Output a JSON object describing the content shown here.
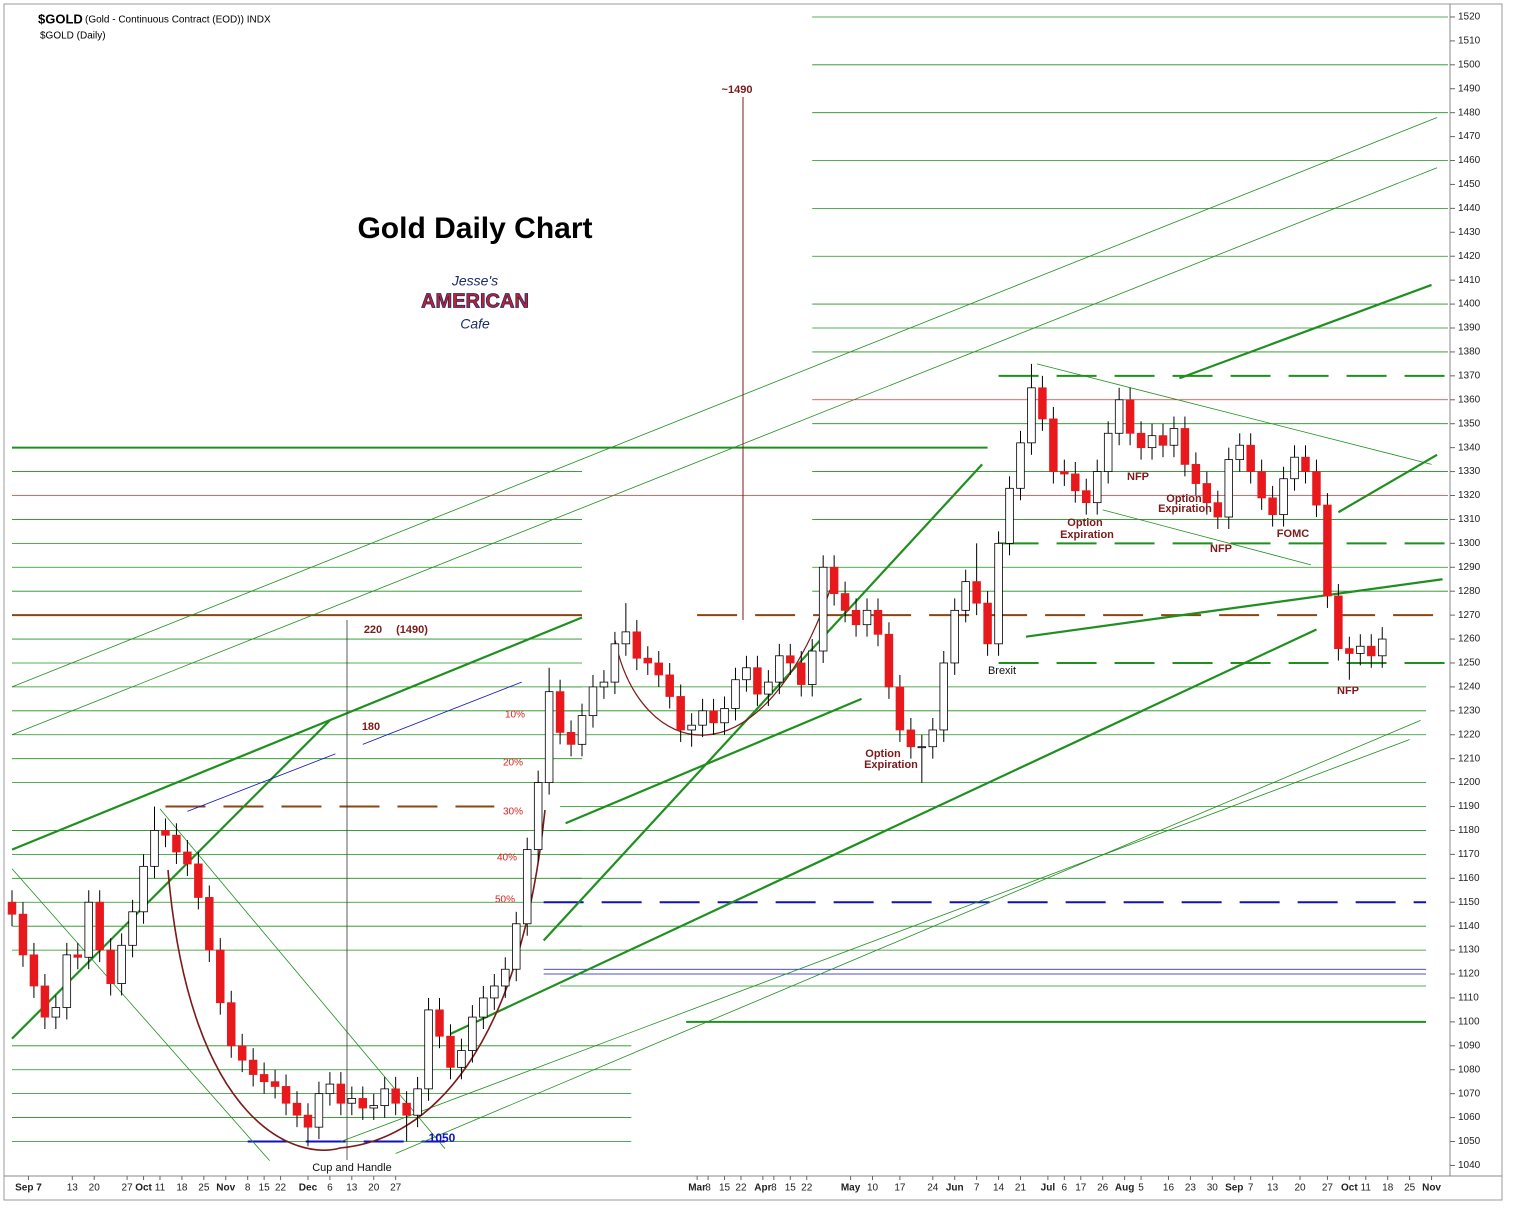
{
  "chart_data": {
    "type": "candlestick",
    "title": "Gold Daily Chart",
    "header": "$GOLD",
    "header_detail": "(Gold - Continuous Contract (EOD)) INDX",
    "subtitle": "$GOLD (Daily)",
    "xlim": [
      0,
      262
    ],
    "xticks": [
      {
        "value": 3,
        "label": "Sep 7"
      },
      {
        "value": 11,
        "label": "13"
      },
      {
        "value": 15,
        "label": "20"
      },
      {
        "value": 21,
        "label": "27"
      },
      {
        "value": 24,
        "label": "Oct"
      },
      {
        "value": 27,
        "label": "11"
      },
      {
        "value": 31,
        "label": "18"
      },
      {
        "value": 35,
        "label": "25"
      },
      {
        "value": 39,
        "label": "Nov"
      },
      {
        "value": 43,
        "label": "8"
      },
      {
        "value": 46,
        "label": "15"
      },
      {
        "value": 49,
        "label": "22"
      },
      {
        "value": 54,
        "label": "Dec"
      },
      {
        "value": 58,
        "label": "6"
      },
      {
        "value": 62,
        "label": "13"
      },
      {
        "value": 66,
        "label": "20"
      },
      {
        "value": 70,
        "label": "27"
      },
      {
        "value": 125,
        "label": "Mar"
      },
      {
        "value": 127,
        "label": "8"
      },
      {
        "value": 130,
        "label": "15"
      },
      {
        "value": 133,
        "label": "22"
      },
      {
        "value": 137,
        "label": "Apr"
      },
      {
        "value": 139,
        "label": "8"
      },
      {
        "value": 142,
        "label": "15"
      },
      {
        "value": 145,
        "label": "22"
      },
      {
        "value": 153,
        "label": "May"
      },
      {
        "value": 157,
        "label": "10"
      },
      {
        "value": 162,
        "label": "17"
      },
      {
        "value": 168,
        "label": "24"
      },
      {
        "value": 172,
        "label": "Jun"
      },
      {
        "value": 176,
        "label": "7"
      },
      {
        "value": 180,
        "label": "14"
      },
      {
        "value": 184,
        "label": "21"
      },
      {
        "value": 189,
        "label": "Jul"
      },
      {
        "value": 192,
        "label": "6"
      },
      {
        "value": 195,
        "label": "17"
      },
      {
        "value": 199,
        "label": "26"
      },
      {
        "value": 203,
        "label": "Aug"
      },
      {
        "value": 206,
        "label": "5"
      },
      {
        "value": 211,
        "label": "16"
      },
      {
        "value": 215,
        "label": "23"
      },
      {
        "value": 219,
        "label": "30"
      },
      {
        "value": 223,
        "label": "Sep"
      },
      {
        "value": 226,
        "label": "7"
      },
      {
        "value": 230,
        "label": "13"
      },
      {
        "value": 235,
        "label": "20"
      },
      {
        "value": 240,
        "label": "27"
      },
      {
        "value": 244,
        "label": "Oct"
      },
      {
        "value": 247,
        "label": "11"
      },
      {
        "value": 251,
        "label": "18"
      },
      {
        "value": 255,
        "label": "25"
      },
      {
        "value": 259,
        "label": "Nov"
      }
    ],
    "ylim": [
      1036,
      1525
    ],
    "yticks": [
      1040,
      1050,
      1060,
      1070,
      1080,
      1090,
      1100,
      1110,
      1120,
      1130,
      1140,
      1150,
      1160,
      1170,
      1180,
      1190,
      1200,
      1210,
      1220,
      1230,
      1240,
      1250,
      1260,
      1270,
      1280,
      1290,
      1300,
      1310,
      1320,
      1330,
      1340,
      1350,
      1360,
      1370,
      1380,
      1390,
      1400,
      1410,
      1420,
      1430,
      1440,
      1450,
      1460,
      1470,
      1480,
      1490,
      1500,
      1510,
      1520
    ],
    "up_color": "#ffffff",
    "down_color": "#e8191c",
    "x": [
      0,
      2,
      4,
      6,
      8,
      10,
      12,
      14,
      16,
      18,
      20,
      22,
      24,
      26,
      28,
      30,
      32,
      34,
      36,
      38,
      40,
      42,
      44,
      46,
      48,
      50,
      52,
      54,
      56,
      58,
      60,
      62,
      64,
      66,
      68,
      70,
      72,
      74,
      76,
      78,
      80,
      82,
      84,
      86,
      88,
      90,
      92,
      94,
      96,
      98,
      100,
      102,
      104,
      106,
      108,
      110,
      112,
      114,
      116,
      118,
      120,
      122,
      124,
      126,
      128,
      130,
      132,
      134,
      136,
      138,
      140,
      142,
      144,
      146,
      148,
      150,
      152,
      154,
      156,
      158,
      160,
      162,
      164,
      166,
      168,
      170,
      172,
      174,
      176,
      178,
      180,
      182,
      184,
      186,
      188,
      190,
      192,
      194,
      196,
      198,
      200,
      202,
      204,
      206,
      208,
      210,
      212,
      214,
      216,
      218,
      220,
      222,
      224,
      226,
      228,
      230,
      232,
      234,
      236,
      238,
      240,
      242,
      244,
      246,
      248,
      250
    ],
    "open": [
      1150,
      1145,
      1128,
      1115,
      1102,
      1106,
      1128,
      1127,
      1150,
      1130,
      1116,
      1132,
      1146,
      1165,
      1180,
      1178,
      1171,
      1166,
      1152,
      1130,
      1108,
      1090,
      1084,
      1078,
      1075,
      1073,
      1066,
      1061,
      1056,
      1070,
      1074,
      1066,
      1068,
      1064,
      1065,
      1072,
      1066,
      1061,
      1072,
      1105,
      1094,
      1081,
      1088,
      1102,
      1110,
      1115,
      1122,
      1141,
      1172,
      1200,
      1238,
      1221,
      1216,
      1228,
      1240,
      1242,
      1258,
      1263,
      1252,
      1250,
      1245,
      1236,
      1222,
      1224,
      1230,
      1225,
      1231,
      1243,
      1248,
      1237,
      1242,
      1253,
      1250,
      1241,
      1255,
      1290,
      1279,
      1272,
      1266,
      1272,
      1262,
      1240,
      1222,
      1215,
      1215,
      1222,
      1250,
      1272,
      1284,
      1275,
      1258,
      1300,
      1323,
      1342,
      1365,
      1352,
      1330,
      1329,
      1322,
      1317,
      1330,
      1346,
      1360,
      1346,
      1340,
      1345,
      1341,
      1348,
      1333,
      1325,
      1317,
      1311,
      1335,
      1341,
      1330,
      1319,
      1312,
      1327,
      1336,
      1330,
      1316,
      1278,
      1256,
      1254,
      1257,
      1253
    ],
    "high": [
      1155,
      1150,
      1133,
      1120,
      1111,
      1133,
      1133,
      1155,
      1155,
      1135,
      1137,
      1151,
      1170,
      1190,
      1185,
      1183,
      1176,
      1171,
      1157,
      1135,
      1113,
      1095,
      1089,
      1083,
      1080,
      1078,
      1071,
      1066,
      1075,
      1079,
      1079,
      1073,
      1073,
      1070,
      1077,
      1077,
      1071,
      1077,
      1110,
      1110,
      1099,
      1093,
      1107,
      1115,
      1120,
      1127,
      1146,
      1177,
      1205,
      1248,
      1243,
      1226,
      1233,
      1245,
      1247,
      1263,
      1275,
      1268,
      1257,
      1255,
      1250,
      1241,
      1229,
      1235,
      1235,
      1236,
      1248,
      1253,
      1253,
      1247,
      1258,
      1258,
      1255,
      1260,
      1295,
      1295,
      1284,
      1277,
      1277,
      1277,
      1267,
      1245,
      1227,
      1220,
      1227,
      1255,
      1277,
      1289,
      1300,
      1280,
      1305,
      1328,
      1347,
      1375,
      1370,
      1357,
      1335,
      1334,
      1327,
      1335,
      1351,
      1365,
      1365,
      1351,
      1350,
      1350,
      1353,
      1353,
      1338,
      1330,
      1322,
      1340,
      1346,
      1346,
      1335,
      1324,
      1332,
      1341,
      1341,
      1335,
      1321,
      1283,
      1261,
      1262,
      1262,
      1265
    ],
    "low": [
      1140,
      1123,
      1110,
      1097,
      1097,
      1101,
      1122,
      1122,
      1125,
      1111,
      1111,
      1127,
      1141,
      1160,
      1173,
      1166,
      1161,
      1147,
      1125,
      1103,
      1085,
      1079,
      1073,
      1070,
      1068,
      1061,
      1056,
      1048,
      1051,
      1065,
      1061,
      1061,
      1059,
      1059,
      1060,
      1061,
      1050,
      1056,
      1067,
      1089,
      1076,
      1076,
      1083,
      1097,
      1105,
      1110,
      1117,
      1136,
      1167,
      1195,
      1216,
      1211,
      1211,
      1223,
      1235,
      1237,
      1253,
      1247,
      1245,
      1240,
      1231,
      1217,
      1215,
      1219,
      1220,
      1220,
      1226,
      1238,
      1232,
      1232,
      1237,
      1245,
      1236,
      1236,
      1250,
      1274,
      1267,
      1261,
      1261,
      1257,
      1235,
      1217,
      1210,
      1200,
      1210,
      1217,
      1245,
      1267,
      1270,
      1253,
      1253,
      1295,
      1318,
      1337,
      1347,
      1325,
      1324,
      1317,
      1312,
      1312,
      1325,
      1341,
      1341,
      1335,
      1335,
      1336,
      1336,
      1328,
      1320,
      1312,
      1306,
      1306,
      1330,
      1325,
      1314,
      1307,
      1307,
      1322,
      1325,
      1311,
      1273,
      1251,
      1243,
      1249,
      1248,
      1248
    ],
    "close": [
      1145,
      1128,
      1115,
      1102,
      1106,
      1128,
      1127,
      1150,
      1130,
      1116,
      1132,
      1146,
      1165,
      1180,
      1178,
      1171,
      1166,
      1152,
      1130,
      1108,
      1090,
      1084,
      1078,
      1075,
      1073,
      1066,
      1061,
      1056,
      1070,
      1074,
      1066,
      1068,
      1064,
      1065,
      1072,
      1066,
      1061,
      1072,
      1105,
      1094,
      1081,
      1088,
      1102,
      1110,
      1115,
      1122,
      1141,
      1172,
      1200,
      1238,
      1221,
      1216,
      1228,
      1240,
      1242,
      1258,
      1263,
      1252,
      1250,
      1245,
      1236,
      1222,
      1224,
      1230,
      1225,
      1231,
      1243,
      1248,
      1237,
      1242,
      1253,
      1250,
      1241,
      1255,
      1290,
      1279,
      1272,
      1266,
      1272,
      1262,
      1240,
      1222,
      1215,
      1215,
      1222,
      1250,
      1272,
      1284,
      1275,
      1258,
      1300,
      1323,
      1342,
      1365,
      1352,
      1330,
      1329,
      1322,
      1317,
      1330,
      1346,
      1360,
      1346,
      1340,
      1345,
      1341,
      1348,
      1333,
      1325,
      1317,
      1311,
      1335,
      1341,
      1330,
      1319,
      1312,
      1327,
      1336,
      1330,
      1316,
      1278,
      1256,
      1254,
      1257,
      1253,
      1260
    ],
    "level_groups": [
      {
        "color": "#1f8f1f",
        "from": 146,
        "to": 262,
        "prices": [
          1520,
          1500,
          1480,
          1460,
          1440,
          1420,
          1400,
          1390,
          1380,
          1350,
          1330,
          1310,
          1290,
          1280
        ]
      },
      {
        "color": "#1f8f1f",
        "from": 0,
        "to": 104,
        "prices": [
          1330,
          1310,
          1300,
          1290,
          1280,
          1260,
          1250,
          1240,
          1230,
          1220,
          1210,
          1200,
          1180,
          1170,
          1160,
          1150,
          1140,
          1130
        ]
      },
      {
        "color": "#1f8f1f",
        "from": 0,
        "to": 113,
        "prices": [
          1090,
          1080,
          1070,
          1060,
          1050
        ]
      },
      {
        "color": "#1f8f1f",
        "from": 100,
        "to": 258,
        "prices": [
          1240,
          1230,
          1220,
          1200,
          1190,
          1180,
          1170,
          1160,
          1140,
          1130,
          1115
        ]
      },
      {
        "color": "#1f8f1f",
        "from": 0,
        "to": 178,
        "prices": [
          1340
        ],
        "thick": true
      },
      {
        "color": "#1f8f1f",
        "from": 123,
        "to": 258,
        "prices": [
          1100
        ],
        "thick": true
      },
      {
        "color": "#1f8f1f",
        "from": 180,
        "to": 262,
        "prices": [
          1300,
          1250,
          1370
        ],
        "thick": true,
        "dashed": true
      },
      {
        "color": "#e03030",
        "from": 0,
        "to": 262,
        "prices": [
          1320
        ]
      },
      {
        "color": "#e03030",
        "from": 146,
        "to": 262,
        "prices": [
          1360
        ]
      },
      {
        "color": "#8b4513",
        "from": 0,
        "to": 104,
        "prices": [
          1270
        ],
        "thick": true
      },
      {
        "color": "#8b4513",
        "from": 125,
        "to": 262,
        "prices": [
          1270
        ],
        "thick": true,
        "dashed": true
      },
      {
        "color": "#8b4513",
        "from": 28,
        "to": 88,
        "prices": [
          1190
        ],
        "thick": true,
        "dashed": true
      },
      {
        "color": "#1010c0",
        "from": 97,
        "to": 258,
        "prices": [
          1150
        ],
        "thick": true,
        "dashed": true
      },
      {
        "color": "#1010c0",
        "from": 97,
        "to": 258,
        "prices": [
          1120,
          1122
        ]
      },
      {
        "color": "#1010c0",
        "from": 43,
        "to": 79,
        "prices": [
          1050
        ],
        "thick": true,
        "dashed": true
      }
    ],
    "trendlines": [
      {
        "color": "#1f8f1f",
        "x": [
          0,
          260
        ],
        "y": [
          1240,
          1478
        ]
      },
      {
        "color": "#1f8f1f",
        "x": [
          0,
          260
        ],
        "y": [
          1220,
          1457
        ]
      },
      {
        "color": "#1f8f1f",
        "x": [
          0,
          104
        ],
        "y": [
          1172,
          1269
        ],
        "thick": true
      },
      {
        "color": "#1f8f1f",
        "x": [
          0,
          58
        ],
        "y": [
          1093,
          1226
        ],
        "thick": true
      },
      {
        "color": "#1f8f1f",
        "x": [
          97,
          177
        ],
        "y": [
          1134,
          1333
        ],
        "thick": true
      },
      {
        "color": "#1f8f1f",
        "x": [
          101,
          155
        ],
        "y": [
          1183,
          1235
        ],
        "thick": true
      },
      {
        "color": "#1f8f1f",
        "x": [
          185,
          261
        ],
        "y": [
          1261,
          1285
        ],
        "thick": true
      },
      {
        "color": "#1f8f1f",
        "x": [
          80,
          238
        ],
        "y": [
          1095,
          1264
        ],
        "thick": true
      },
      {
        "color": "#1f8f1f",
        "x": [
          242,
          260
        ],
        "y": [
          1313,
          1337
        ],
        "thick": true
      },
      {
        "color": "#1f8f1f",
        "x": [
          213,
          259
        ],
        "y": [
          1369,
          1408
        ],
        "thick": true
      },
      {
        "color": "#1f8f1f",
        "x": [
          187,
          259
        ],
        "y": [
          1375,
          1333
        ]
      },
      {
        "color": "#1f8f1f",
        "x": [
          199,
          237
        ],
        "y": [
          1314,
          1291
        ]
      },
      {
        "color": "#1f8f1f",
        "x": [
          70,
          257
        ],
        "y": [
          1045,
          1226
        ]
      },
      {
        "color": "#1f8f1f",
        "x": [
          60,
          255
        ],
        "y": [
          1050,
          1218
        ]
      },
      {
        "color": "#1f8f1f",
        "x": [
          0,
          47
        ],
        "y": [
          1164,
          1042
        ]
      },
      {
        "color": "#1f8f1f",
        "x": [
          27,
          79
        ],
        "y": [
          1189,
          1047
        ]
      },
      {
        "color": "#1010c0",
        "x": [
          32,
          59
        ],
        "y": [
          1188,
          1212
        ]
      },
      {
        "color": "#1010c0",
        "x": [
          64,
          93
        ],
        "y": [
          1216,
          1242
        ]
      }
    ],
    "annotations": [
      "~1490",
      "220",
      "(1490)",
      "180",
      "10%",
      "20%",
      "30%",
      "40%",
      "50%",
      "1050",
      "Cup and Handle",
      "Option",
      "Expiration",
      "Option",
      "Expiration",
      "Option",
      "Expiration",
      "NFP",
      "NFP",
      "NFP",
      "FOMC",
      "Brexit"
    ]
  },
  "logo": {
    "top": "Jesse's",
    "middle": "AMERICAN",
    "bottom": "Cafe"
  }
}
